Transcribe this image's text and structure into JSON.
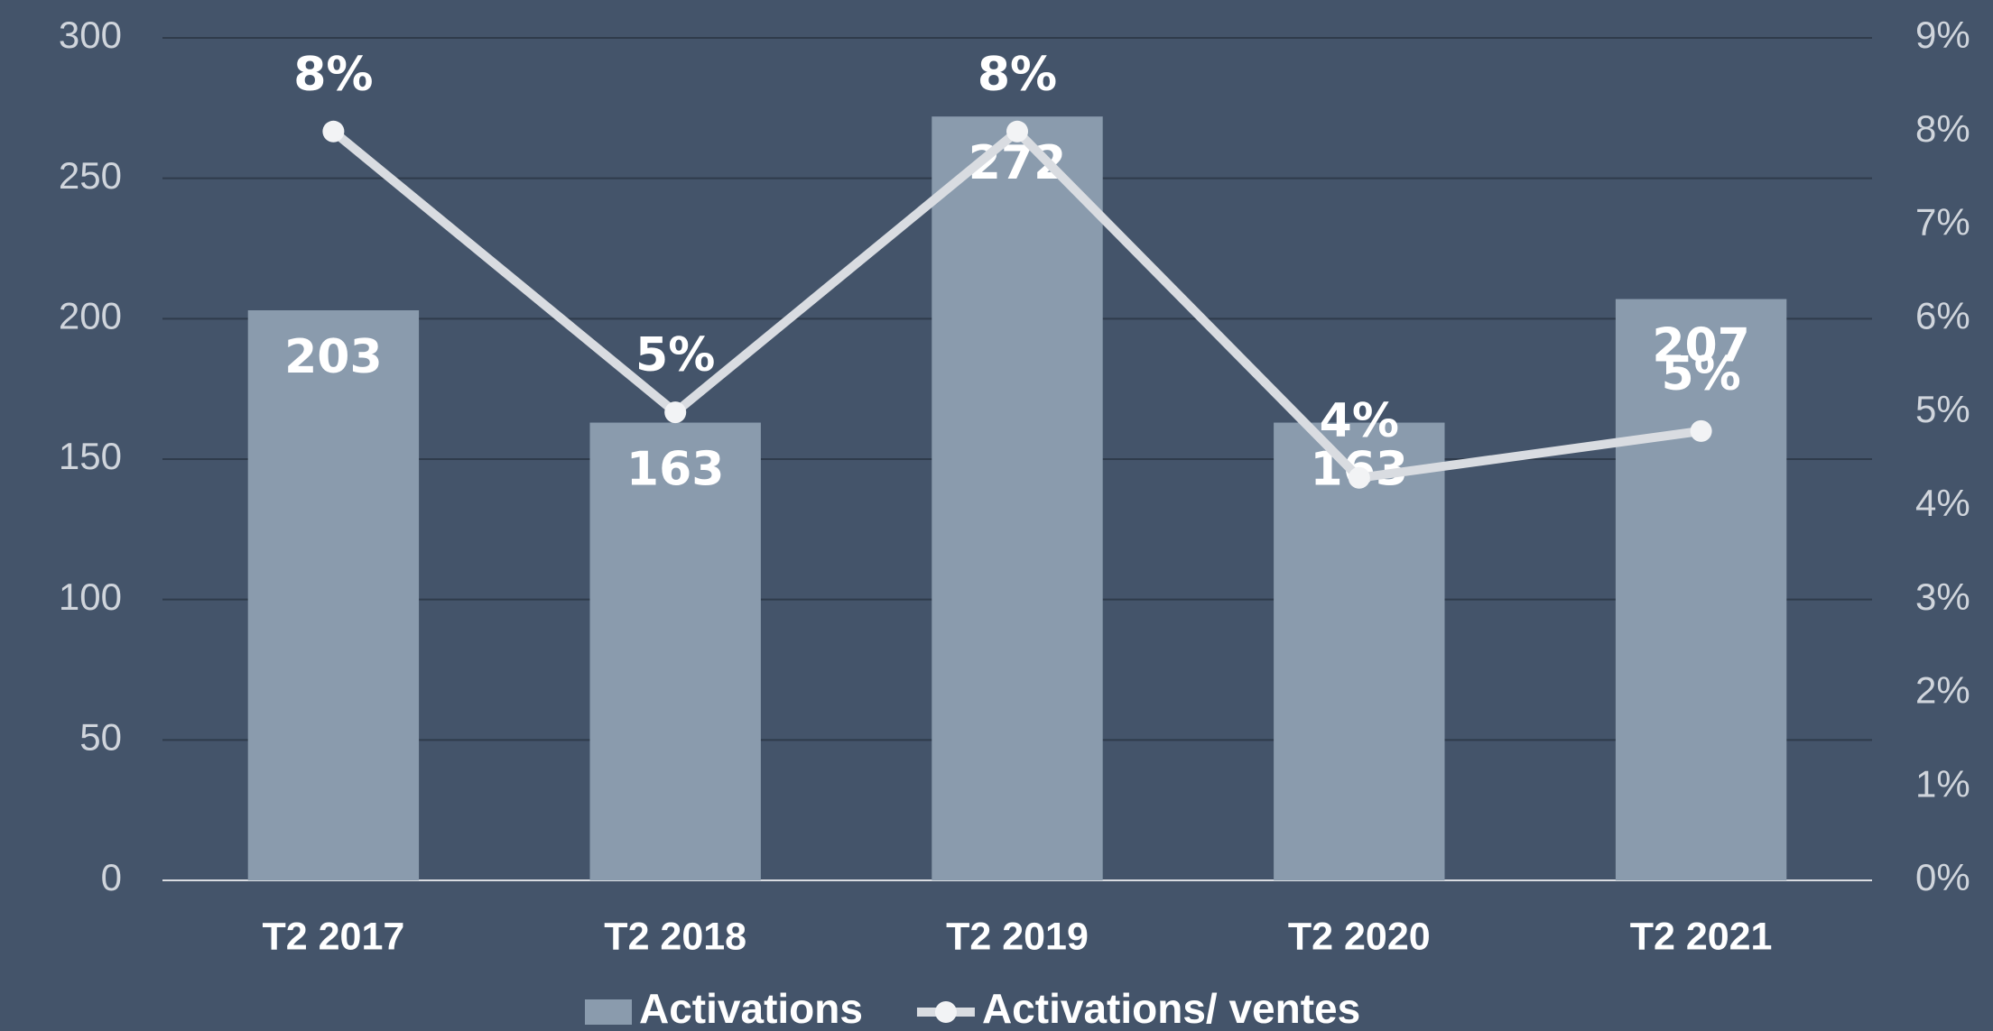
{
  "chart_data": {
    "type": "bar",
    "categories": [
      "T2 2017",
      "T2 2018",
      "T2 2019",
      "T2 2020",
      "T2 2021"
    ],
    "series": [
      {
        "name": "Activations",
        "type": "bar",
        "color": "#8a9bad",
        "values": [
          203,
          163,
          272,
          163,
          207
        ]
      },
      {
        "name": "Activations/ ventes",
        "type": "line",
        "axis": "y2",
        "color": "#d9dce1",
        "values": [
          8,
          5,
          8,
          4.3,
          4.8
        ],
        "value_labels": [
          "8%",
          "5%",
          "8%",
          "4%",
          "5%"
        ]
      }
    ],
    "ylim": [
      0,
      300
    ],
    "yticks": [
      0,
      50,
      100,
      150,
      200,
      250,
      300
    ],
    "y2lim": [
      0,
      9
    ],
    "y2ticks": [
      {
        "value": 0,
        "label": "0%"
      },
      {
        "value": 1,
        "label": "1%"
      },
      {
        "value": 2,
        "label": "2%"
      },
      {
        "value": 3,
        "label": "3%"
      },
      {
        "value": 4,
        "label": "4%"
      },
      {
        "value": 5,
        "label": "5%"
      },
      {
        "value": 6,
        "label": "6%"
      },
      {
        "value": 7,
        "label": "7%"
      },
      {
        "value": 8,
        "label": "8%"
      },
      {
        "value": 9,
        "label": "9%"
      }
    ],
    "grid": true,
    "legend": "bottom"
  }
}
